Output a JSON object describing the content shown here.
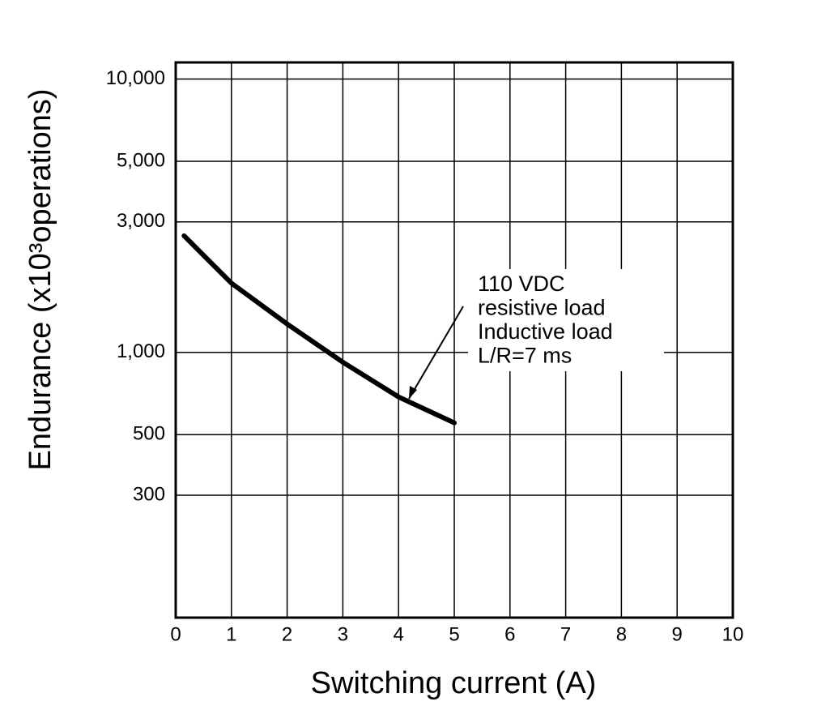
{
  "chart_data": {
    "type": "line",
    "x_label": "Switching current (A)",
    "y_label": "Endurance (x10³operations)",
    "annotation": [
      "110 VDC",
      "resistive load",
      "Inductive load",
      "L/R=7 ms"
    ],
    "x": [
      0.15,
      1,
      2,
      3,
      4,
      5
    ],
    "values": [
      2670,
      1790,
      1270,
      920,
      687,
      552
    ],
    "color": "#000000",
    "xlim": [
      0,
      10
    ],
    "xticks": [
      0,
      1,
      2,
      3,
      4,
      5,
      6,
      7,
      8,
      9,
      10
    ],
    "ylim": [
      107,
      11500
    ],
    "log_y": true,
    "yticks": [
      {
        "value": 10000,
        "label": "10,000"
      },
      {
        "value": 5000,
        "label": "5,000"
      },
      {
        "value": 3000,
        "label": "3,000"
      },
      {
        "value": 1000,
        "label": "1,000"
      },
      500,
      300
    ],
    "grid": true
  }
}
